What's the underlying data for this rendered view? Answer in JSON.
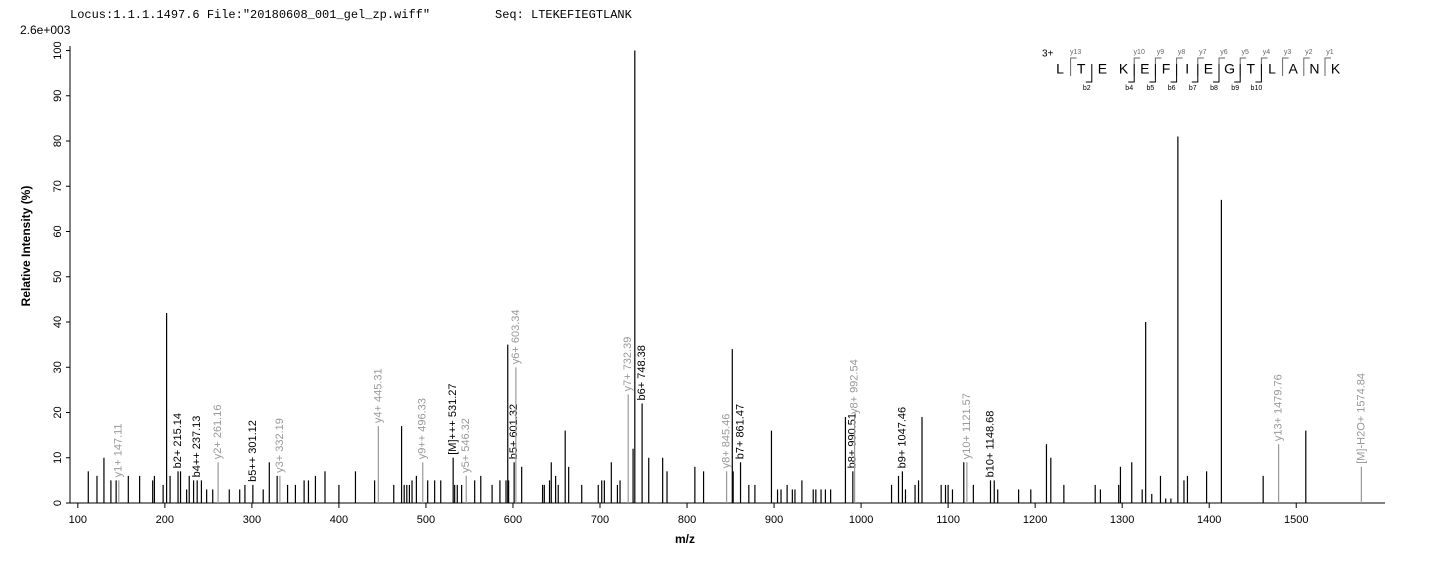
{
  "header": {
    "locus": "Locus:1.1.1.1497.6 File:\"20180608_001_gel_zp.wiff\"",
    "seq": "Seq: LTEKEFIEGTLANK"
  },
  "chart_data": {
    "type": "spectrum",
    "scale_label": "2.6e+003",
    "y_label": "Relative   Intensity (%)",
    "x_label": "m/z",
    "xlim": [
      91,
      1602
    ],
    "ylim": [
      0,
      101
    ],
    "xticks": [
      100,
      200,
      300,
      400,
      500,
      600,
      700,
      800,
      900,
      1000,
      1100,
      1200,
      1300,
      1400,
      1500
    ],
    "yticks": [
      0,
      10,
      20,
      30,
      40,
      50,
      60,
      70,
      80,
      90,
      100
    ],
    "color": "#000000",
    "peaks": {
      "x": [
        112,
        122,
        130,
        138,
        144,
        158,
        171,
        186,
        188,
        198,
        202,
        206,
        218,
        225,
        228,
        233,
        242,
        248,
        255,
        274,
        286,
        292,
        313,
        320,
        329,
        341,
        350,
        360,
        365,
        373,
        384,
        400,
        419,
        441,
        463,
        472,
        475,
        478,
        481,
        484,
        489,
        502,
        510,
        517,
        533,
        536,
        541,
        556,
        563,
        576,
        585,
        592,
        594,
        595,
        610,
        634,
        636,
        642,
        644,
        649,
        652,
        660,
        664,
        679,
        698,
        702,
        705,
        713,
        720,
        723,
        738,
        740,
        756,
        772,
        777,
        809,
        819,
        852,
        853,
        871,
        878,
        897,
        904,
        908,
        915,
        921,
        924,
        932,
        945,
        948,
        954,
        959,
        965,
        982,
        1035,
        1043,
        1051,
        1062,
        1066,
        1070,
        1092,
        1097,
        1100,
        1105,
        1118,
        1129,
        1153,
        1157,
        1181,
        1195,
        1213,
        1218,
        1233,
        1269,
        1275,
        1296,
        1298,
        1311,
        1323,
        1327,
        1334,
        1344,
        1350,
        1356,
        1364,
        1371,
        1375,
        1397,
        1414,
        1462,
        1511
      ],
      "values": [
        7,
        6,
        10,
        5,
        5,
        6,
        6,
        5,
        6,
        4,
        42,
        6,
        7,
        3,
        6,
        5,
        5,
        3,
        3,
        3,
        3,
        4,
        3,
        9,
        6,
        4,
        4,
        5,
        5,
        6,
        7,
        4,
        7,
        5,
        4,
        17,
        4,
        4,
        4,
        5,
        6,
        5,
        5,
        5,
        4,
        4,
        4,
        5,
        6,
        4,
        5,
        5,
        35,
        5,
        8,
        4,
        4,
        5,
        9,
        6,
        4,
        16,
        8,
        4,
        4,
        5,
        5,
        9,
        4,
        5,
        12,
        100,
        10,
        10,
        7,
        8,
        7,
        34,
        7,
        4,
        4,
        16,
        3,
        3,
        4,
        3,
        3,
        5,
        3,
        3,
        3,
        3,
        3,
        19,
        4,
        6,
        3,
        4,
        5,
        19,
        4,
        4,
        4,
        3,
        9,
        4,
        5,
        3,
        3,
        3,
        13,
        10,
        4,
        4,
        3,
        4,
        8,
        9,
        3,
        40,
        2,
        6,
        1,
        1,
        81,
        5,
        6,
        7,
        67,
        6,
        16
      ]
    },
    "annotations": [
      {
        "label": "y1+ 147.11",
        "x": 147.11,
        "value": 5,
        "color": "#999999"
      },
      {
        "label": "b2+ 215.14",
        "x": 215.14,
        "value": 7,
        "color": "#000000"
      },
      {
        "label": "b4++ 237.13",
        "x": 237.13,
        "value": 5,
        "color": "#000000"
      },
      {
        "label": "y2+ 261.16",
        "x": 261.16,
        "value": 9,
        "color": "#999999"
      },
      {
        "label": "b5++ 301.12",
        "x": 301.12,
        "value": 4,
        "color": "#000000"
      },
      {
        "label": "y3+ 332.19",
        "x": 332.19,
        "value": 6,
        "color": "#999999"
      },
      {
        "label": "y4+ 445.31",
        "x": 445.31,
        "value": 17,
        "color": "#999999"
      },
      {
        "label": "y9++ 496.33",
        "x": 496.33,
        "value": 9,
        "color": "#999999"
      },
      {
        "label": "[M]+++ 531.27",
        "x": 531.27,
        "value": 10,
        "color": "#000000"
      },
      {
        "label": "y5+ 546.32",
        "x": 546.32,
        "value": 6,
        "color": "#999999"
      },
      {
        "label": "b5+ 601.32",
        "x": 601.32,
        "value": 9,
        "color": "#000000"
      },
      {
        "label": "y6+ 603.34",
        "x": 603.34,
        "value": 30,
        "color": "#999999"
      },
      {
        "label": "y7+ 732.39",
        "x": 732.39,
        "value": 24,
        "color": "#999999"
      },
      {
        "label": "b6+ 748.38",
        "x": 748.38,
        "value": 22,
        "color": "#000000"
      },
      {
        "label": "y8+ 845.46",
        "x": 845.46,
        "value": 7,
        "color": "#999999"
      },
      {
        "label": "b7+ 861.47",
        "x": 861.47,
        "value": 9,
        "color": "#000000"
      },
      {
        "label": "b8+ 990.51",
        "x": 990.51,
        "value": 7,
        "color": "#000000"
      },
      {
        "label": "y8+ 992.54",
        "x": 992.54,
        "value": 19,
        "color": "#999999"
      },
      {
        "label": "b9+ 1047.46",
        "x": 1047.46,
        "value": 7,
        "color": "#000000"
      },
      {
        "label": "y10+ 1121.57",
        "x": 1121.57,
        "value": 9,
        "color": "#999999"
      },
      {
        "label": "b10+ 1148.68",
        "x": 1148.68,
        "value": 5,
        "color": "#000000"
      },
      {
        "label": "y13+ 1479.76",
        "x": 1479.76,
        "value": 13,
        "color": "#999999"
      },
      {
        "label": "[M]-H2O+ 1574.84",
        "x": 1574.84,
        "value": 8,
        "color": "#999999"
      }
    ],
    "sequence_map": {
      "charge": "3+",
      "residues": [
        "L",
        "T",
        "E",
        "K",
        "E",
        "F",
        "I",
        "E",
        "G",
        "T",
        "L",
        "A",
        "N",
        "K"
      ],
      "y_ions": [
        "y13",
        "y10",
        "y9",
        "y8",
        "y7",
        "y6",
        "y5",
        "y4",
        "y3",
        "y2",
        "y1"
      ],
      "b_ions": [
        "b2",
        "b4",
        "b5",
        "b6",
        "b7",
        "b8",
        "b9",
        "b10"
      ]
    }
  }
}
